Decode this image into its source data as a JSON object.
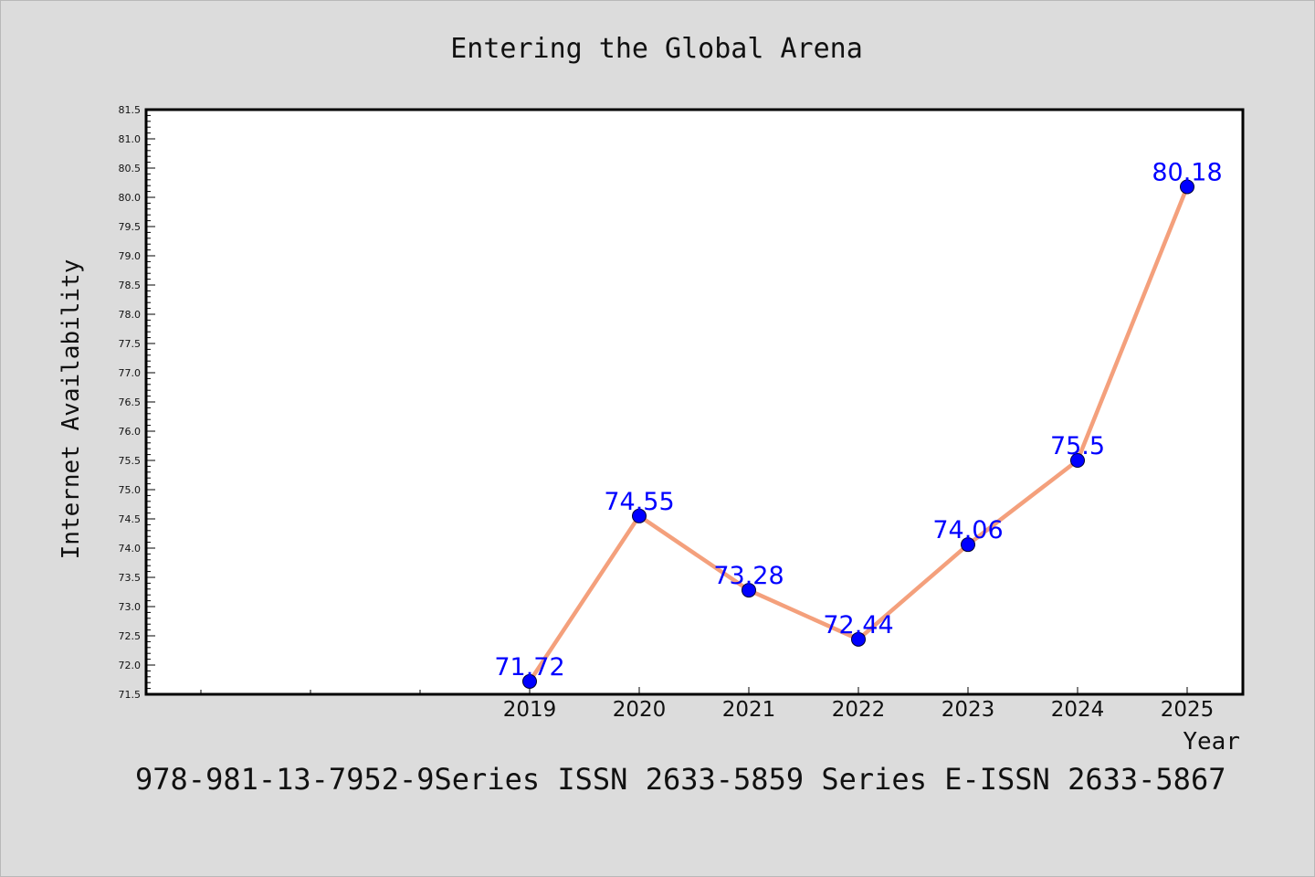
{
  "chart_data": {
    "type": "line",
    "title": "Entering the Global Arena",
    "xlabel": "Year",
    "ylabel": "Internet Availability",
    "categories": [
      "2019",
      "2020",
      "2021",
      "2022",
      "2023",
      "2024",
      "2025"
    ],
    "series": [
      {
        "values": [
          71.72,
          74.55,
          73.28,
          72.44,
          74.06,
          75.5,
          80.18
        ],
        "data_labels": [
          "71.72",
          "74.55",
          "73.28",
          "72.44",
          "74.06",
          "75.5",
          "80.18"
        ],
        "line_color": "#f4a07c",
        "marker_color": "#0000ff"
      }
    ],
    "ylim": [
      71.5,
      81.5
    ],
    "ytick_step": 0.5,
    "yticks": [
      "71.5",
      "72.0",
      "72.5",
      "73.0",
      "73.5",
      "74.0",
      "74.5",
      "75.0",
      "75.5",
      "76.0",
      "76.5",
      "77.0",
      "77.5",
      "78.0",
      "78.5",
      "79.0",
      "79.5",
      "80.0",
      "80.5",
      "81.0",
      "81.5"
    ],
    "grid": false,
    "legend": "none",
    "plot_background": "#ffffff",
    "page_background": "#dcdcdc",
    "data_label_color": "#0000ff"
  },
  "footer": {
    "text": "978-981-13-7952-9Series ISSN 2633-5859 Series E-ISSN 2633-5867"
  }
}
